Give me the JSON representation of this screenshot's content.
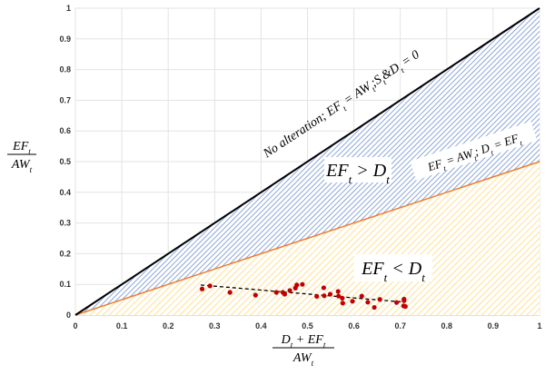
{
  "chart_data": {
    "type": "scatter",
    "title": "",
    "xlabel": {
      "num": [
        {
          "t": "D"
        },
        {
          "t": "t",
          "sub": true
        },
        {
          "t": " + EF"
        },
        {
          "t": "t",
          "sub": true
        }
      ],
      "den": [
        {
          "t": "AW"
        },
        {
          "t": "t",
          "sub": true
        }
      ]
    },
    "ylabel": {
      "num": [
        {
          "t": "EF"
        },
        {
          "t": "t",
          "sub": true
        }
      ],
      "den": [
        {
          "t": "AW"
        },
        {
          "t": "t",
          "sub": true
        }
      ]
    },
    "xlim": [
      0,
      1
    ],
    "ylim": [
      0,
      1
    ],
    "grid": true,
    "xticks": [
      "0",
      "0.1",
      "0.2",
      "0.3",
      "0.4",
      "0.5",
      "0.6",
      "0.7",
      "0.8",
      "0.9",
      "1"
    ],
    "yticks": [
      "0",
      "0.1",
      "0.2",
      "0.3",
      "0.4",
      "0.5",
      "0.6",
      "0.7",
      "0.8",
      "0.9",
      "1"
    ],
    "lines": [
      {
        "name": "no-alteration",
        "color": "#000000",
        "x": [
          0,
          1
        ],
        "y": [
          0,
          1
        ]
      },
      {
        "name": "ef-equals-d",
        "color": "#ED7D31",
        "x": [
          0,
          1
        ],
        "y": [
          0,
          0.5
        ]
      }
    ],
    "regions": [
      {
        "name": "ef-greater-d",
        "fill": "#4472C4"
      },
      {
        "name": "ef-less-d",
        "fill": "#FFC000"
      }
    ],
    "points_color": "#C00000",
    "points": [
      [
        0.273,
        0.085
      ],
      [
        0.29,
        0.095
      ],
      [
        0.333,
        0.074
      ],
      [
        0.388,
        0.065
      ],
      [
        0.433,
        0.074
      ],
      [
        0.447,
        0.074
      ],
      [
        0.451,
        0.068
      ],
      [
        0.462,
        0.08
      ],
      [
        0.474,
        0.088
      ],
      [
        0.477,
        0.098
      ],
      [
        0.489,
        0.1
      ],
      [
        0.52,
        0.061
      ],
      [
        0.535,
        0.089
      ],
      [
        0.536,
        0.063
      ],
      [
        0.549,
        0.068
      ],
      [
        0.566,
        0.077
      ],
      [
        0.567,
        0.062
      ],
      [
        0.575,
        0.055
      ],
      [
        0.576,
        0.039
      ],
      [
        0.597,
        0.045
      ],
      [
        0.617,
        0.062
      ],
      [
        0.63,
        0.042
      ],
      [
        0.644,
        0.025
      ],
      [
        0.656,
        0.051
      ],
      [
        0.692,
        0.041
      ],
      [
        0.708,
        0.052
      ],
      [
        0.708,
        0.047
      ],
      [
        0.707,
        0.03
      ],
      [
        0.711,
        0.028
      ]
    ],
    "trendline": {
      "x": [
        0.27,
        0.71
      ],
      "y": [
        0.098,
        0.042
      ],
      "style": "dashed"
    },
    "annotations": {
      "no_alteration": [
        {
          "t": "No alteration; EF"
        },
        {
          "t": "t",
          "sub": true
        },
        {
          "t": " = AW"
        },
        {
          "t": "t",
          "sub": true
        },
        {
          "t": ";S"
        },
        {
          "t": "t",
          "sub": true
        },
        {
          "t": "&D"
        },
        {
          "t": "t",
          "sub": true
        },
        {
          "t": " = 0"
        }
      ],
      "ef_gt_d": [
        {
          "t": "EF"
        },
        {
          "t": "t",
          "sub": true
        },
        {
          "t": " > D"
        },
        {
          "t": "t",
          "sub": true
        }
      ],
      "ef_eq_d": [
        {
          "t": "EF"
        },
        {
          "t": "t",
          "sub": true
        },
        {
          "t": " = AW"
        },
        {
          "t": "t",
          "sub": true
        },
        {
          "t": "; D"
        },
        {
          "t": "t",
          "sub": true
        },
        {
          "t": " = EF"
        },
        {
          "t": "t",
          "sub": true
        }
      ],
      "ef_lt_d": [
        {
          "t": "EF"
        },
        {
          "t": "t",
          "sub": true
        },
        {
          "t": " < D"
        },
        {
          "t": "t",
          "sub": true
        }
      ]
    }
  }
}
